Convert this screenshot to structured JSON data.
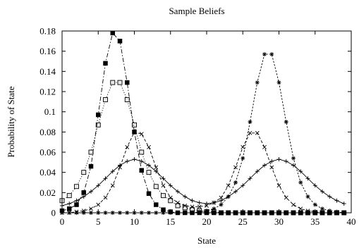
{
  "chart_data": {
    "type": "line",
    "title": "Sample Beliefs",
    "xlabel": "State",
    "ylabel": "Probability of State",
    "xlim": [
      0,
      40
    ],
    "ylim": [
      0,
      0.18
    ],
    "xticks": [
      "0",
      "5",
      "10",
      "15",
      "20",
      "25",
      "30",
      "35",
      "40"
    ],
    "yticks": [
      "0",
      "0.02",
      "0.04",
      "0.06",
      "0.08",
      "0.1",
      "0.12",
      "0.14",
      "0.16",
      "0.18"
    ],
    "grid": false,
    "legend": "none",
    "series": [
      {
        "marker": "open-square",
        "line": "dotted",
        "x": [
          0,
          1,
          2,
          3,
          4,
          5,
          6,
          7,
          8,
          9,
          10,
          11,
          12,
          13,
          14,
          15,
          16,
          17,
          18,
          19,
          20,
          21,
          22,
          23,
          24,
          25,
          26,
          27,
          28,
          29,
          30,
          31,
          32,
          33,
          34,
          35,
          36,
          37,
          38,
          39
        ],
        "y": [
          0.012,
          0.017,
          0.026,
          0.04,
          0.06,
          0.087,
          0.112,
          0.129,
          0.129,
          0.112,
          0.087,
          0.06,
          0.04,
          0.026,
          0.017,
          0.012,
          0.007,
          0.005,
          0.003,
          0.002,
          0.001,
          0.001,
          0,
          0,
          0,
          0,
          0,
          0,
          0,
          0,
          0,
          0,
          0,
          0,
          0,
          0,
          0,
          0,
          0,
          0
        ]
      },
      {
        "marker": "filled-square",
        "line": "dash-dot",
        "x": [
          0,
          1,
          2,
          3,
          4,
          5,
          6,
          7,
          8,
          9,
          10,
          11,
          12,
          13,
          14,
          15,
          16,
          17,
          18,
          19,
          20,
          21,
          22,
          23,
          24,
          25,
          26,
          27,
          28,
          29,
          30,
          31,
          32,
          33,
          34,
          35,
          36,
          37,
          38,
          39
        ],
        "y": [
          0.002,
          0.004,
          0.008,
          0.02,
          0.046,
          0.097,
          0.148,
          0.178,
          0.17,
          0.129,
          0.08,
          0.042,
          0.019,
          0.008,
          0.003,
          0.001,
          0,
          0,
          0,
          0,
          0,
          0,
          0,
          0,
          0,
          0,
          0,
          0,
          0,
          0,
          0,
          0,
          0,
          0,
          0,
          0,
          0,
          0,
          0,
          0
        ]
      },
      {
        "marker": "asterisk",
        "line": "dashed",
        "x": [
          0,
          1,
          2,
          3,
          4,
          5,
          6,
          7,
          8,
          9,
          10,
          11,
          12,
          13,
          14,
          15,
          16,
          17,
          18,
          19,
          20,
          21,
          22,
          23,
          24,
          25,
          26,
          27,
          28,
          29,
          30,
          31,
          32,
          33,
          34,
          35,
          36,
          37,
          38,
          39
        ],
        "y": [
          0,
          0,
          0,
          0,
          0,
          0,
          0,
          0,
          0,
          0,
          0,
          0,
          0,
          0,
          0,
          0,
          0,
          0,
          0,
          0.001,
          0.002,
          0.004,
          0.008,
          0.016,
          0.03,
          0.054,
          0.09,
          0.129,
          0.157,
          0.157,
          0.129,
          0.09,
          0.054,
          0.03,
          0.016,
          0.008,
          0.004,
          0.002,
          0.001,
          0
        ]
      },
      {
        "marker": "cross",
        "line": "dash",
        "x": [
          0,
          1,
          2,
          3,
          4,
          5,
          6,
          7,
          8,
          9,
          10,
          11,
          12,
          13,
          14,
          15,
          16,
          17,
          18,
          19,
          20,
          21,
          22,
          23,
          24,
          25,
          26,
          27,
          28,
          29,
          30,
          31,
          32,
          33,
          34,
          35,
          36,
          37,
          38,
          39
        ],
        "y": [
          0,
          0,
          0.001,
          0.002,
          0.004,
          0.008,
          0.015,
          0.027,
          0.045,
          0.065,
          0.08,
          0.078,
          0.065,
          0.045,
          0.027,
          0.015,
          0.01,
          0.007,
          0.006,
          0.006,
          0.007,
          0.01,
          0.015,
          0.027,
          0.045,
          0.065,
          0.079,
          0.079,
          0.065,
          0.045,
          0.027,
          0.015,
          0.008,
          0.004,
          0.002,
          0.001,
          0,
          0,
          0,
          0
        ]
      },
      {
        "marker": "plus",
        "line": "solid",
        "x": [
          0,
          1,
          2,
          3,
          4,
          5,
          6,
          7,
          8,
          9,
          10,
          11,
          12,
          13,
          14,
          15,
          16,
          17,
          18,
          19,
          20,
          21,
          22,
          23,
          24,
          25,
          26,
          27,
          28,
          29,
          30,
          31,
          32,
          33,
          34,
          35,
          36,
          37,
          38,
          39
        ],
        "y": [
          0.007,
          0.009,
          0.012,
          0.016,
          0.021,
          0.027,
          0.034,
          0.041,
          0.047,
          0.051,
          0.053,
          0.051,
          0.047,
          0.041,
          0.034,
          0.027,
          0.021,
          0.016,
          0.012,
          0.01,
          0.009,
          0.01,
          0.012,
          0.016,
          0.021,
          0.027,
          0.034,
          0.041,
          0.047,
          0.051,
          0.053,
          0.051,
          0.047,
          0.041,
          0.034,
          0.027,
          0.021,
          0.016,
          0.012,
          0.009
        ]
      },
      {
        "marker": "cross-small",
        "line": "solid",
        "x": [
          0,
          1,
          2,
          3,
          4,
          5,
          6,
          7,
          8,
          9,
          10,
          11,
          12,
          13,
          14,
          15,
          16,
          17,
          18,
          19,
          20,
          21,
          22,
          23,
          24,
          25,
          26,
          27,
          28,
          29,
          30,
          31,
          32,
          33,
          34,
          35,
          36,
          37,
          38,
          39
        ],
        "y": [
          0,
          0,
          0,
          0,
          0,
          0,
          0,
          0,
          0,
          0,
          0,
          0,
          0,
          0,
          0,
          0,
          0,
          0,
          0,
          0,
          0,
          0,
          0,
          0,
          0,
          0,
          0,
          0,
          0,
          0,
          0,
          0,
          0,
          0,
          0,
          0,
          0,
          0,
          0,
          0
        ]
      }
    ]
  }
}
